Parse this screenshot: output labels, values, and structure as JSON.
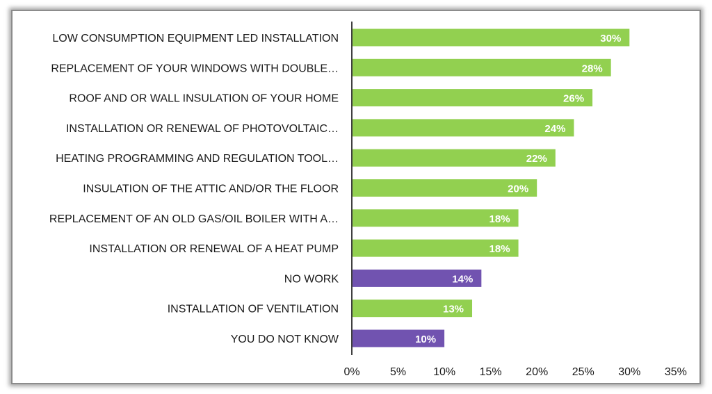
{
  "chart_data": {
    "type": "bar",
    "orientation": "horizontal",
    "categories": [
      "LOW CONSUMPTION EQUIPMENT LED INSTALLATION",
      "REPLACEMENT OF YOUR WINDOWS WITH DOUBLE…",
      "ROOF AND OR WALL INSULATION OF YOUR HOME",
      "INSTALLATION OR RENEWAL OF PHOTOVOLTAIC…",
      "HEATING PROGRAMMING AND REGULATION TOOL…",
      "INSULATION OF THE ATTIC AND/OR THE FLOOR",
      "REPLACEMENT OF AN OLD GAS/OIL BOILER WITH A…",
      "INSTALLATION OR RENEWAL OF A HEAT PUMP",
      "NO WORK",
      "INSTALLATION OF VENTILATION",
      "YOU DO NOT KNOW"
    ],
    "values": [
      30,
      28,
      26,
      24,
      22,
      20,
      18,
      18,
      14,
      13,
      10
    ],
    "data_labels": [
      "30%",
      "28%",
      "26%",
      "24%",
      "22%",
      "20%",
      "18%",
      "18%",
      "14%",
      "13%",
      "10%"
    ],
    "bar_colors": [
      "#92d050",
      "#92d050",
      "#92d050",
      "#92d050",
      "#92d050",
      "#92d050",
      "#92d050",
      "#92d050",
      "#7153b0",
      "#92d050",
      "#7153b0"
    ],
    "xlim": [
      0,
      35
    ],
    "x_ticks": [
      0,
      5,
      10,
      15,
      20,
      25,
      30,
      35
    ],
    "x_tick_labels": [
      "0%",
      "5%",
      "10%",
      "15%",
      "20%",
      "25%",
      "30%",
      "35%"
    ],
    "grid": false,
    "legend": "none",
    "title": "",
    "xlabel": "",
    "ylabel": ""
  },
  "colors": {
    "primary_bar": "#92d050",
    "highlight_bar": "#7153b0",
    "axis": "#404040",
    "text": "#1a1a1a",
    "data_label_text": "#ffffff"
  }
}
